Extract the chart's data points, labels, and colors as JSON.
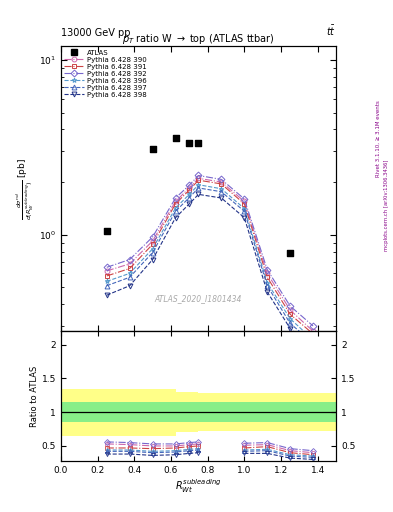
{
  "series_order": [
    "390",
    "391",
    "392",
    "396",
    "397",
    "398"
  ],
  "linestyles": {
    "390": "-.",
    "391": "-.",
    "392": "-.",
    "396": "--",
    "397": "--",
    "398": "--"
  },
  "atlas_x": [
    0.25,
    0.5,
    0.625,
    0.7,
    0.75,
    1.25
  ],
  "atlas_y": [
    1.05,
    3.1,
    3.55,
    3.35,
    3.35,
    0.78
  ],
  "series": {
    "390": {
      "x": [
        0.25,
        0.375,
        0.5,
        0.625,
        0.7,
        0.75,
        0.875,
        1.0,
        1.125,
        1.25,
        1.375
      ],
      "y": [
        0.62,
        0.68,
        0.92,
        1.55,
        1.85,
        2.1,
        2.0,
        1.55,
        0.6,
        0.37,
        0.28
      ],
      "color": "#cc66aa",
      "marker": "o",
      "label": "Pythia 6.428 390"
    },
    "391": {
      "x": [
        0.25,
        0.375,
        0.5,
        0.625,
        0.7,
        0.75,
        0.875,
        1.0,
        1.125,
        1.25,
        1.375
      ],
      "y": [
        0.58,
        0.64,
        0.88,
        1.5,
        1.8,
        2.05,
        1.95,
        1.5,
        0.57,
        0.35,
        0.27
      ],
      "color": "#cc4444",
      "marker": "s",
      "label": "Pythia 6.428 391"
    },
    "392": {
      "x": [
        0.25,
        0.375,
        0.5,
        0.625,
        0.7,
        0.75,
        0.875,
        1.0,
        1.125,
        1.25,
        1.375
      ],
      "y": [
        0.65,
        0.72,
        0.97,
        1.62,
        1.92,
        2.18,
        2.07,
        1.6,
        0.63,
        0.39,
        0.3
      ],
      "color": "#7766cc",
      "marker": "D",
      "label": "Pythia 6.428 392"
    },
    "396": {
      "x": [
        0.25,
        0.375,
        0.5,
        0.625,
        0.7,
        0.75,
        0.875,
        1.0,
        1.125,
        1.25,
        1.375
      ],
      "y": [
        0.54,
        0.6,
        0.83,
        1.42,
        1.7,
        1.93,
        1.83,
        1.41,
        0.53,
        0.33,
        0.25
      ],
      "color": "#5599cc",
      "marker": "*",
      "label": "Pythia 6.428 396"
    },
    "397": {
      "x": [
        0.25,
        0.375,
        0.5,
        0.625,
        0.7,
        0.75,
        0.875,
        1.0,
        1.125,
        1.25,
        1.375
      ],
      "y": [
        0.51,
        0.57,
        0.79,
        1.36,
        1.63,
        1.85,
        1.76,
        1.36,
        0.51,
        0.31,
        0.24
      ],
      "color": "#4466bb",
      "marker": "^",
      "label": "Pythia 6.428 397"
    },
    "398": {
      "x": [
        0.25,
        0.375,
        0.5,
        0.625,
        0.7,
        0.75,
        0.875,
        1.0,
        1.125,
        1.25,
        1.375
      ],
      "y": [
        0.45,
        0.51,
        0.72,
        1.25,
        1.5,
        1.7,
        1.62,
        1.25,
        0.47,
        0.29,
        0.22
      ],
      "color": "#223388",
      "marker": "v",
      "label": "Pythia 6.428 398"
    }
  },
  "ratio_series": {
    "390": {
      "x": [
        0.25,
        0.375,
        0.5,
        0.625,
        0.7,
        0.75,
        0.875,
        1.0,
        1.125,
        1.25,
        1.375
      ],
      "y": [
        0.53,
        0.52,
        0.5,
        0.5,
        0.52,
        0.53,
        null,
        0.51,
        0.52,
        0.43,
        0.4
      ]
    },
    "391": {
      "x": [
        0.25,
        0.375,
        0.5,
        0.625,
        0.7,
        0.75,
        0.875,
        1.0,
        1.125,
        1.25,
        1.375
      ],
      "y": [
        0.47,
        0.47,
        0.46,
        0.47,
        0.49,
        0.5,
        null,
        0.47,
        0.49,
        0.4,
        0.37
      ]
    },
    "392": {
      "x": [
        0.25,
        0.375,
        0.5,
        0.625,
        0.7,
        0.75,
        0.875,
        1.0,
        1.125,
        1.25,
        1.375
      ],
      "y": [
        0.56,
        0.55,
        0.53,
        0.53,
        0.55,
        0.56,
        null,
        0.54,
        0.55,
        0.46,
        0.43
      ]
    },
    "396": {
      "x": [
        0.25,
        0.375,
        0.5,
        0.625,
        0.7,
        0.75,
        0.875,
        1.0,
        1.125,
        1.25,
        1.375
      ],
      "y": [
        0.44,
        0.44,
        0.42,
        0.43,
        0.45,
        0.46,
        null,
        0.44,
        0.45,
        0.37,
        0.35
      ]
    },
    "397": {
      "x": [
        0.25,
        0.375,
        0.5,
        0.625,
        0.7,
        0.75,
        0.875,
        1.0,
        1.125,
        1.25,
        1.375
      ],
      "y": [
        0.42,
        0.42,
        0.4,
        0.41,
        0.43,
        0.44,
        null,
        0.42,
        0.43,
        0.35,
        0.33
      ]
    },
    "398": {
      "x": [
        0.25,
        0.375,
        0.5,
        0.625,
        0.7,
        0.75,
        0.875,
        1.0,
        1.125,
        1.25,
        1.375
      ],
      "y": [
        0.38,
        0.38,
        0.36,
        0.37,
        0.39,
        0.4,
        null,
        0.39,
        0.39,
        0.32,
        0.3
      ]
    }
  },
  "yellow_band": {
    "edges": [
      0.0,
      0.5,
      0.625,
      0.75,
      1.5
    ],
    "low": [
      0.65,
      0.65,
      0.7,
      0.72,
      0.65
    ],
    "high": [
      1.35,
      1.35,
      1.3,
      1.28,
      1.35
    ]
  },
  "green_band_low": 0.85,
  "green_band_high": 1.15,
  "xlim": [
    0,
    1.5
  ],
  "ylim_main": [
    0.28,
    12
  ],
  "ylim_ratio": [
    0.28,
    2.2
  ],
  "ratio_yticks": [
    0.5,
    1.0,
    1.5,
    2.0
  ],
  "ratio_yticklabels": [
    "0.5",
    "1",
    "1.5",
    "2"
  ]
}
